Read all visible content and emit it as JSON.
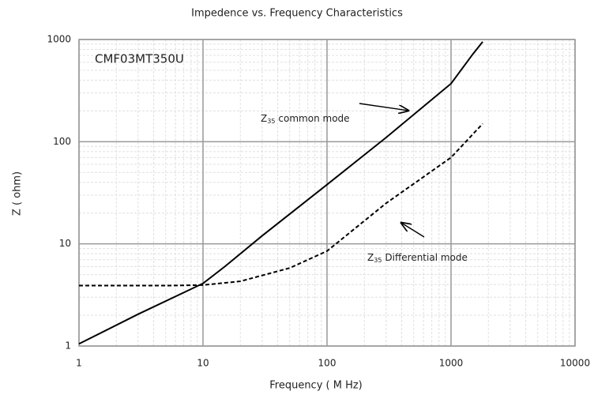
{
  "chart_data": {
    "type": "line",
    "title": "Impedence vs. Frequency Characteristics",
    "xlabel": "Frequency ( M Hz)",
    "ylabel": "Z ( ohm)",
    "log_x": true,
    "log_y": true,
    "grid": true,
    "xlim": [
      1,
      10000
    ],
    "xticks": [
      1,
      10,
      100,
      1000,
      10000
    ],
    "ylim": [
      1,
      1000
    ],
    "yticks": [
      1,
      10,
      100,
      1000
    ],
    "annotations": [
      {
        "text": "CMF03MT350U"
      },
      {
        "main": "Z",
        "sub": "35",
        "text": "common mode"
      },
      {
        "main": "Z",
        "sub": "35",
        "text": "Differential mode"
      }
    ],
    "series": [
      {
        "color": "#000000",
        "dashed": false,
        "x": [
          1,
          3,
          10,
          15,
          30,
          100,
          300,
          1000,
          1500,
          1800
        ],
        "values": [
          1.05,
          2.05,
          4.1,
          6,
          12,
          38,
          110,
          370,
          720,
          950
        ]
      },
      {
        "color": "#000000",
        "dashed": true,
        "x": [
          1,
          5,
          10,
          20,
          50,
          100,
          300,
          1000,
          1800
        ],
        "values": [
          3.9,
          3.9,
          3.95,
          4.3,
          5.8,
          8.5,
          25,
          70,
          150
        ]
      }
    ]
  }
}
